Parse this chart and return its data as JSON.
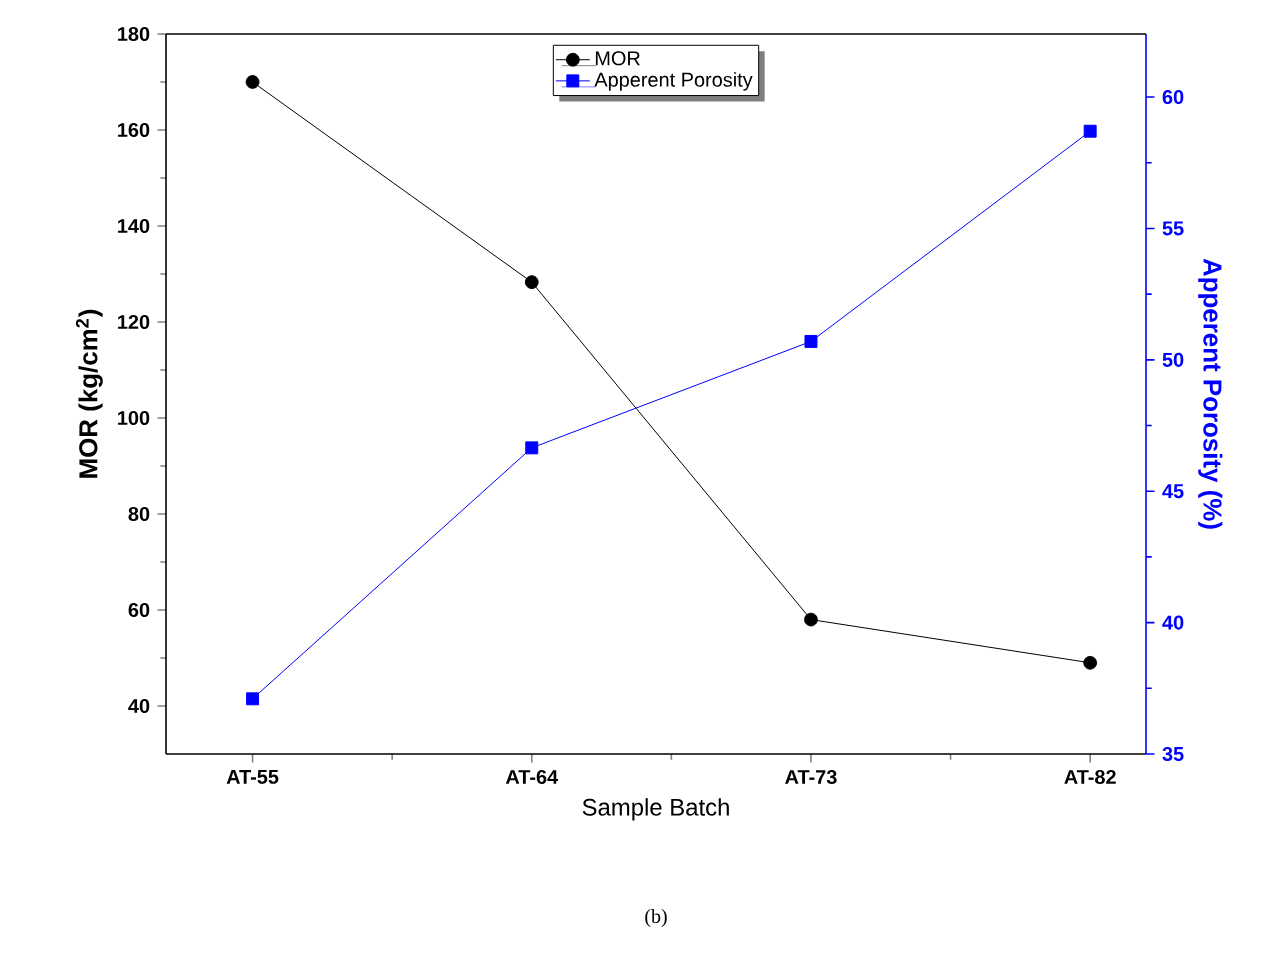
{
  "chart_data": {
    "type": "line",
    "xlabel": "Sample Batch",
    "ylabel": "MOR (kg/cm$^{2}$)",
    "y2label": "Apperent Porosity (%)",
    "categories": [
      "AT-55",
      "AT-64",
      "AT-73",
      "AT-82"
    ],
    "series": [
      {
        "name": "MOR",
        "color": "#000000",
        "marker": "circle",
        "values": [
          170,
          128.3,
          58,
          49
        ]
      },
      {
        "name": "Apperent Porosity",
        "color": "#0000ff",
        "marker": "square",
        "axis": "y2",
        "values": [
          37.1,
          46.65,
          50.7,
          58.7
        ]
      }
    ],
    "ylim": [
      30,
      180
    ],
    "yticks": [
      40,
      60,
      80,
      100,
      120,
      140,
      160,
      180
    ],
    "y2lim": [
      35,
      62.4
    ],
    "y2ticks": [
      35,
      40,
      45,
      50,
      55,
      60
    ],
    "legend": "top",
    "grid": false,
    "line_style": "solid",
    "annotations": [
      "(b)"
    ]
  }
}
